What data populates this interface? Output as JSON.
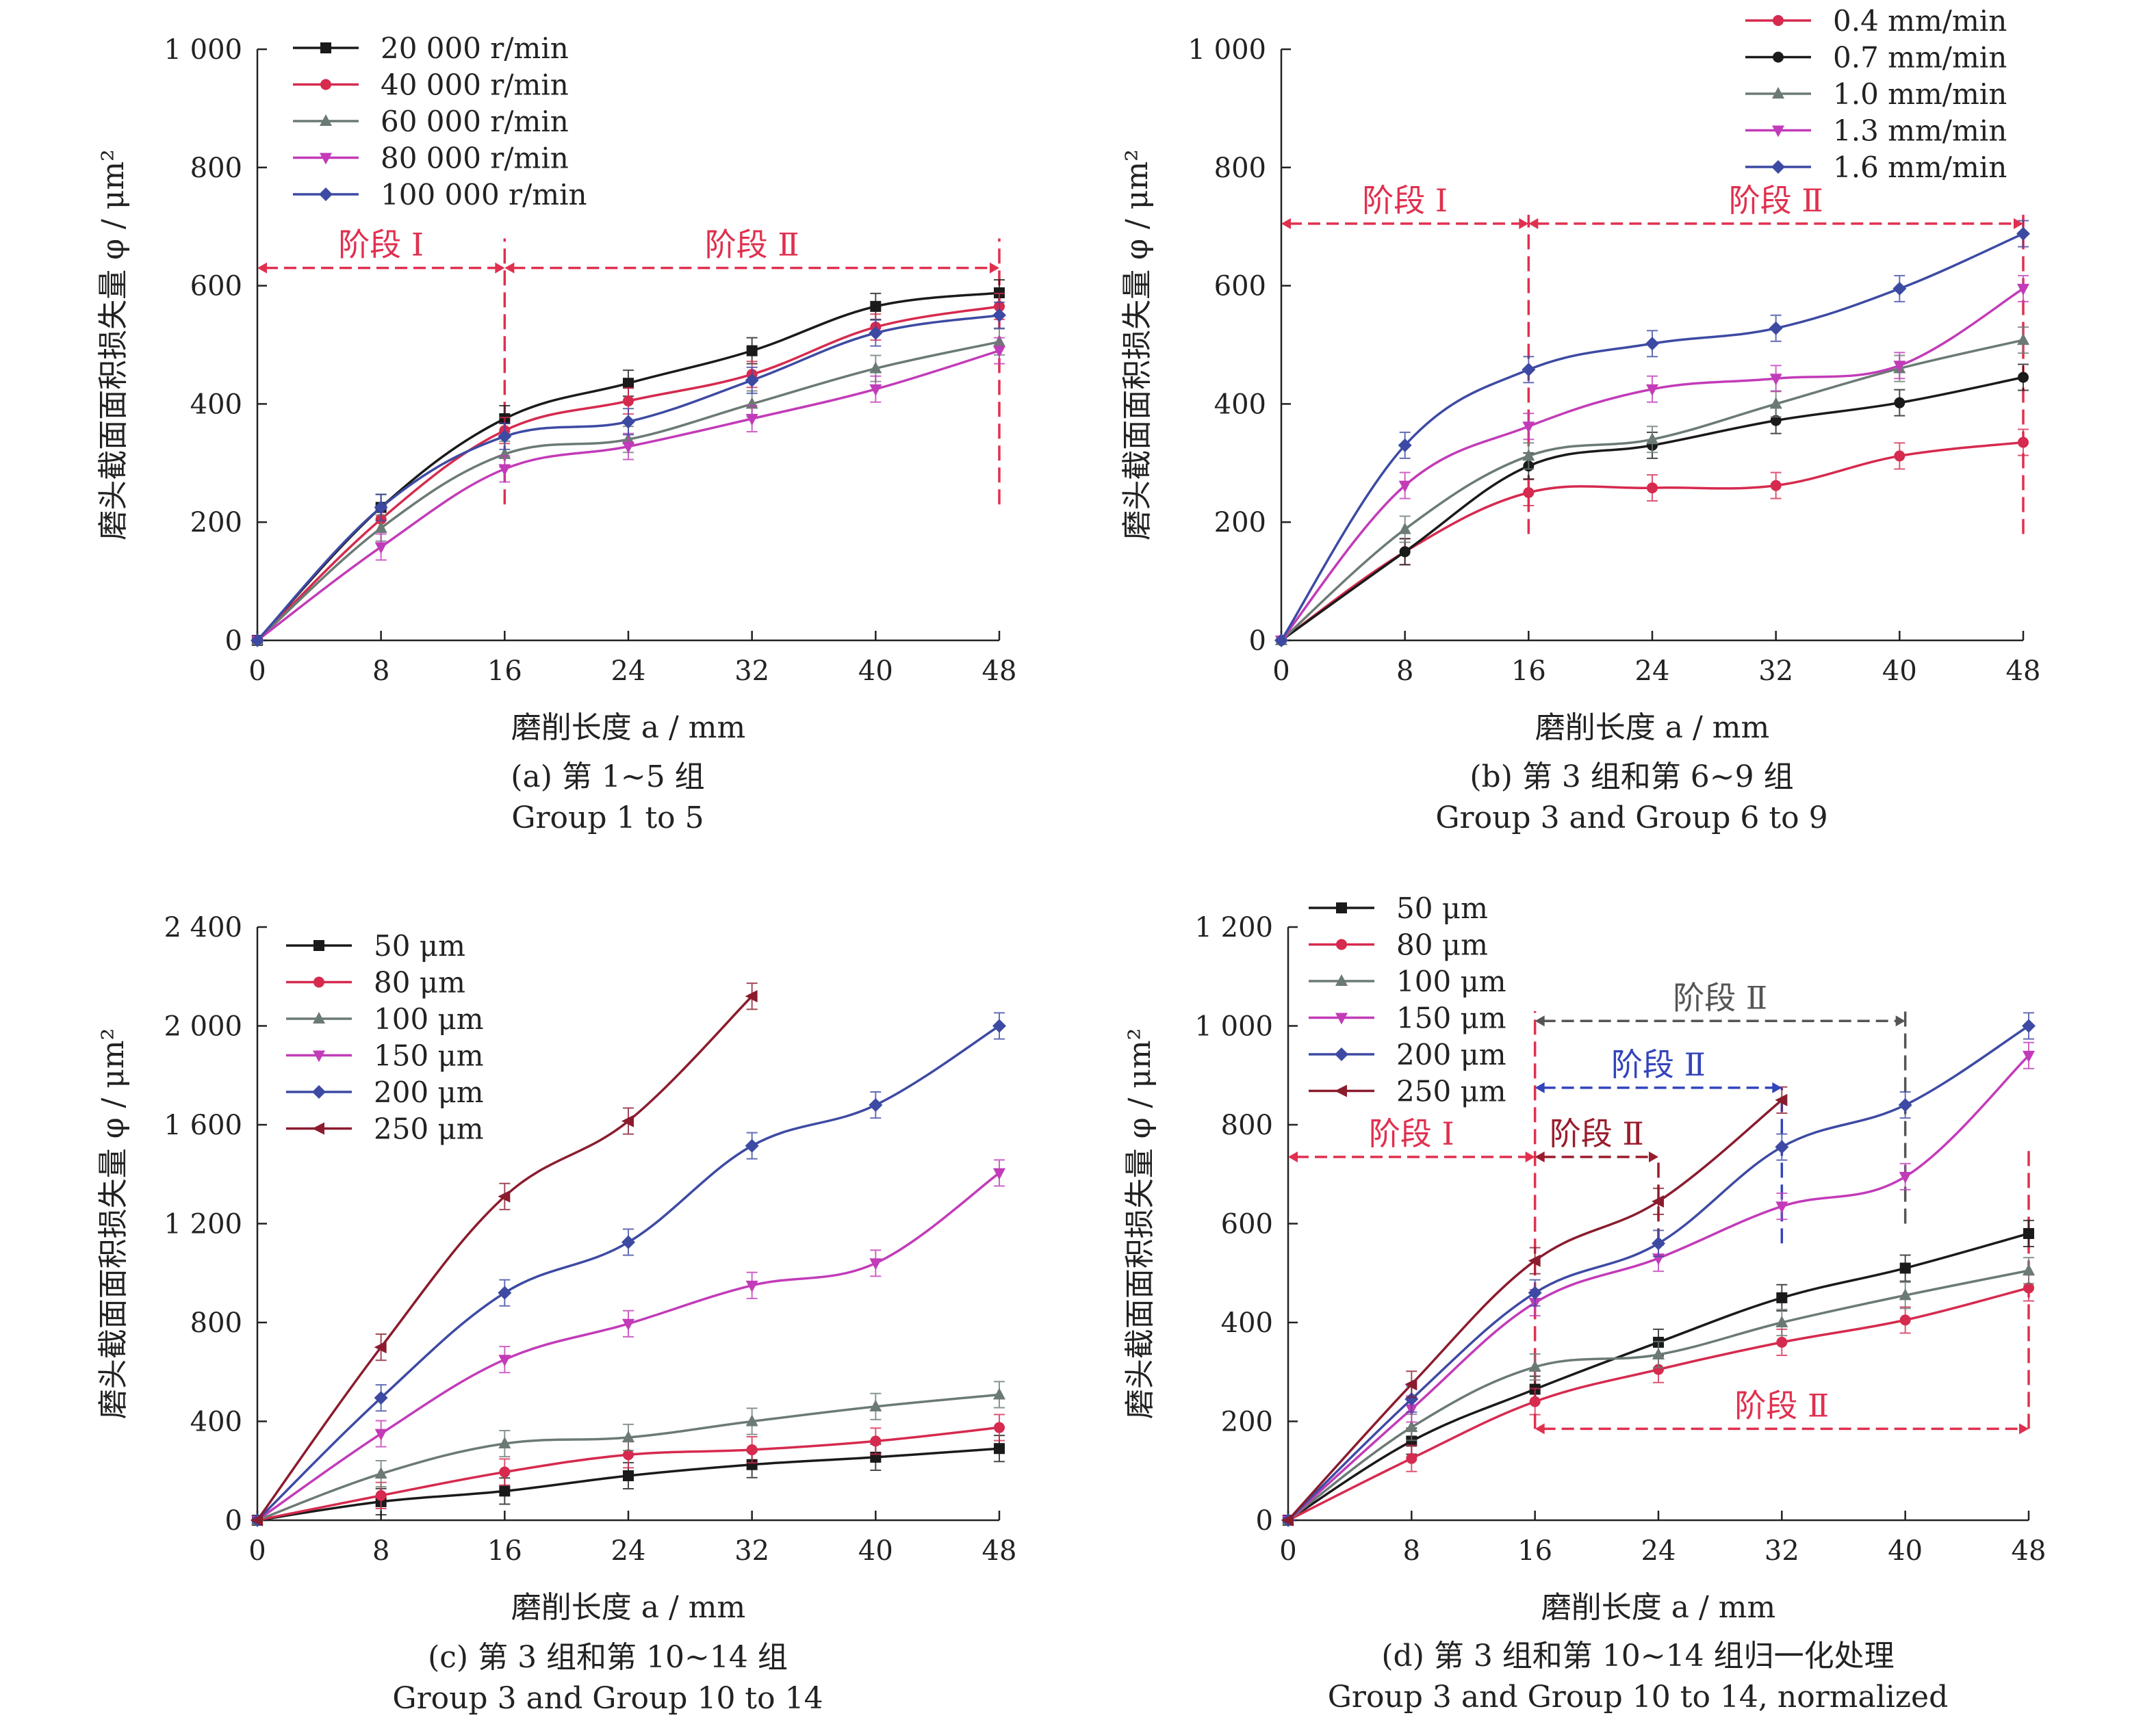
{
  "colors": {
    "black": "#1a1a1a",
    "red": "#d62a4e",
    "gray": "#6b7a74",
    "magenta": "#c23bb8",
    "blue": "#3d4aa3",
    "darkred": "#8a1c2e",
    "stage_red": "#e0304f",
    "stage_gray": "#555555",
    "stage_blue": "#3344bb",
    "stage_darkred": "#9a1c2c"
  },
  "chart_data": [
    {
      "type": "line",
      "caption_cn": "(a) 第 1~5 组",
      "caption_en": "Group 1 to 5",
      "xlabel": "磨削长度 a / mm",
      "ylabel": "磨头截面面积损失量 φ / μm²",
      "x": [
        0,
        8,
        16,
        24,
        32,
        40,
        48
      ],
      "xticks": [
        "0",
        "8",
        "16",
        "24",
        "32",
        "40",
        "48"
      ],
      "xlim": [
        0,
        48
      ],
      "ylim": [
        0,
        1000
      ],
      "yticks": [
        0,
        200,
        400,
        600,
        800,
        1000
      ],
      "ytick_labels": [
        "0",
        "200",
        "400",
        "600",
        "800",
        "1 000"
      ],
      "legend": "top-left",
      "series": [
        {
          "name": "20 000 r/min",
          "color": "black",
          "marker": "square",
          "values": [
            0,
            225,
            375,
            435,
            490,
            565,
            588
          ]
        },
        {
          "name": "40 000 r/min",
          "color": "red",
          "marker": "circle",
          "values": [
            0,
            205,
            355,
            405,
            450,
            530,
            565
          ]
        },
        {
          "name": "60 000 r/min",
          "color": "gray",
          "marker": "triangle",
          "values": [
            0,
            190,
            315,
            340,
            400,
            460,
            505
          ]
        },
        {
          "name": "80 000 r/min",
          "color": "magenta",
          "marker": "triangle-down",
          "values": [
            0,
            158,
            290,
            328,
            375,
            425,
            490
          ]
        },
        {
          "name": "100 000 r/min",
          "color": "blue",
          "marker": "diamond",
          "values": [
            0,
            225,
            345,
            370,
            440,
            520,
            550
          ]
        }
      ],
      "stages": [
        {
          "label": "阶段 Ⅰ",
          "x_from": 0,
          "x_to": 16,
          "y": 630,
          "color": "stage_red"
        },
        {
          "label": "阶段 Ⅱ",
          "x_from": 16,
          "x_to": 48,
          "y": 630,
          "color": "stage_red"
        }
      ],
      "vlines": [
        {
          "x": 16,
          "y_from": 230,
          "y_to": 680,
          "color": "stage_red"
        },
        {
          "x": 48,
          "y_from": 230,
          "y_to": 680,
          "color": "stage_red"
        }
      ]
    },
    {
      "type": "line",
      "caption_cn": "(b) 第 3 组和第 6~9 组",
      "caption_en": "Group 3 and Group 6 to 9",
      "xlabel": "磨削长度 a / mm",
      "ylabel": "磨头截面面积损失量 φ / μm²",
      "x": [
        0,
        8,
        16,
        24,
        32,
        40,
        48
      ],
      "xticks": [
        "0",
        "8",
        "16",
        "24",
        "32",
        "40",
        "48"
      ],
      "xlim": [
        0,
        48
      ],
      "ylim": [
        0,
        1000
      ],
      "yticks": [
        0,
        200,
        400,
        600,
        800,
        1000
      ],
      "ytick_labels": [
        "0",
        "200",
        "400",
        "600",
        "800",
        "1 000"
      ],
      "legend": "top-right",
      "series": [
        {
          "name": "0.4 mm/min",
          "color": "red",
          "marker": "circle",
          "values": [
            0,
            150,
            250,
            258,
            262,
            312,
            335
          ]
        },
        {
          "name": "0.7 mm/min",
          "color": "black",
          "marker": "circle",
          "values": [
            0,
            150,
            295,
            330,
            372,
            402,
            445
          ]
        },
        {
          "name": "1.0 mm/min",
          "color": "gray",
          "marker": "triangle",
          "values": [
            0,
            188,
            312,
            340,
            400,
            460,
            508
          ]
        },
        {
          "name": "1.3 mm/min",
          "color": "magenta",
          "marker": "triangle-down",
          "values": [
            0,
            262,
            362,
            425,
            443,
            465,
            595
          ]
        },
        {
          "name": "1.6 mm/min",
          "color": "blue",
          "marker": "diamond",
          "values": [
            0,
            330,
            458,
            502,
            528,
            595,
            688
          ]
        }
      ],
      "stages": [
        {
          "label": "阶段 Ⅰ",
          "x_from": 0,
          "x_to": 16,
          "y": 705,
          "color": "stage_red"
        },
        {
          "label": "阶段 Ⅱ",
          "x_from": 16,
          "x_to": 48,
          "y": 705,
          "color": "stage_red"
        }
      ],
      "vlines": [
        {
          "x": 16,
          "y_from": 180,
          "y_to": 720,
          "color": "stage_red"
        },
        {
          "x": 48,
          "y_from": 180,
          "y_to": 720,
          "color": "stage_red"
        }
      ]
    },
    {
      "type": "line",
      "caption_cn": "(c) 第 3 组和第 10~14 组",
      "caption_en": "Group 3 and Group 10 to 14",
      "xlabel": "磨削长度 a / mm",
      "ylabel": "磨头截面面积损失量 φ / μm²",
      "x": [
        0,
        8,
        16,
        24,
        32,
        40,
        48
      ],
      "xticks": [
        "0",
        "8",
        "16",
        "24",
        "32",
        "40",
        "48"
      ],
      "xlim": [
        0,
        48
      ],
      "ylim": [
        0,
        2400
      ],
      "yticks": [
        0,
        400,
        800,
        1200,
        1600,
        2000,
        2400
      ],
      "ytick_labels": [
        "0",
        "400",
        "800",
        "1 200",
        "1 600",
        "2 000",
        "2 400"
      ],
      "legend": "top-left",
      "series": [
        {
          "name": "50 μm",
          "color": "black",
          "marker": "square",
          "values": [
            0,
            75,
            118,
            180,
            225,
            255,
            290
          ]
        },
        {
          "name": "80 μm",
          "color": "red",
          "marker": "circle",
          "values": [
            0,
            100,
            195,
            265,
            285,
            320,
            375
          ]
        },
        {
          "name": "100 μm",
          "color": "gray",
          "marker": "triangle",
          "values": [
            0,
            188,
            310,
            335,
            400,
            460,
            508
          ]
        },
        {
          "name": "150 μm",
          "color": "magenta",
          "marker": "triangle-down",
          "values": [
            0,
            350,
            650,
            795,
            950,
            1040,
            1405
          ]
        },
        {
          "name": "200 μm",
          "color": "blue",
          "marker": "diamond",
          "values": [
            0,
            495,
            920,
            1125,
            1515,
            1680,
            2000
          ]
        },
        {
          "name": "250 μm",
          "color": "darkred",
          "marker": "triangle-left",
          "values": [
            0,
            700,
            1310,
            1615,
            2120,
            null,
            null
          ]
        }
      ],
      "stages": [],
      "vlines": []
    },
    {
      "type": "line",
      "caption_cn": "(d) 第 3 组和第 10~14 组归一化处理",
      "caption_en": "Group 3 and Group 10 to 14, normalized",
      "xlabel": "磨削长度 a / mm",
      "ylabel": "磨头截面面积损失量 φ / μm²",
      "x": [
        0,
        8,
        16,
        24,
        32,
        40,
        48
      ],
      "xticks": [
        "0",
        "8",
        "16",
        "24",
        "32",
        "40",
        "48"
      ],
      "xlim": [
        0,
        48
      ],
      "ylim": [
        0,
        1200
      ],
      "yticks": [
        0,
        200,
        400,
        600,
        800,
        1000,
        1200
      ],
      "ytick_labels": [
        "0",
        "200",
        "400",
        "600",
        "800",
        "1 000",
        "1 200"
      ],
      "legend": "top-left",
      "series": [
        {
          "name": "50 μm",
          "color": "black",
          "marker": "square",
          "values": [
            0,
            160,
            265,
            360,
            450,
            510,
            580
          ]
        },
        {
          "name": "80 μm",
          "color": "red",
          "marker": "circle",
          "values": [
            0,
            125,
            240,
            305,
            360,
            405,
            470
          ]
        },
        {
          "name": "100 μm",
          "color": "gray",
          "marker": "triangle",
          "values": [
            0,
            188,
            310,
            335,
            400,
            455,
            505
          ]
        },
        {
          "name": "150 μm",
          "color": "magenta",
          "marker": "triangle-down",
          "values": [
            0,
            225,
            440,
            530,
            635,
            695,
            940
          ]
        },
        {
          "name": "200 μm",
          "color": "blue",
          "marker": "diamond",
          "values": [
            0,
            245,
            460,
            560,
            755,
            840,
            1000
          ]
        },
        {
          "name": "250 μm",
          "color": "darkred",
          "marker": "triangle-left",
          "values": [
            0,
            275,
            525,
            645,
            850,
            null,
            null
          ]
        }
      ],
      "stages": [
        {
          "label": "阶段 Ⅰ",
          "x_from": 0,
          "x_to": 16,
          "y": 735,
          "color": "stage_red"
        },
        {
          "label": "阶段 Ⅱ",
          "x_from": 16,
          "x_to": 24,
          "y": 735,
          "color": "stage_darkred"
        },
        {
          "label": "阶段 Ⅱ",
          "x_from": 16,
          "x_to": 32,
          "y": 875,
          "color": "stage_blue"
        },
        {
          "label": "阶段 Ⅱ",
          "x_from": 16,
          "x_to": 40,
          "y": 1010,
          "color": "stage_gray"
        },
        {
          "label": "阶段 Ⅱ",
          "x_from": 16,
          "x_to": 48,
          "y": 185,
          "color": "stage_red"
        }
      ],
      "vlines": [
        {
          "x": 16,
          "y_from": 185,
          "y_to": 1030,
          "color": "stage_red"
        },
        {
          "x": 24,
          "y_from": 560,
          "y_to": 735,
          "color": "stage_darkred"
        },
        {
          "x": 32,
          "y_from": 560,
          "y_to": 875,
          "color": "stage_blue"
        },
        {
          "x": 40,
          "y_from": 600,
          "y_to": 1030,
          "color": "stage_gray"
        },
        {
          "x": 48,
          "y_from": 185,
          "y_to": 760,
          "color": "stage_red"
        }
      ]
    }
  ]
}
